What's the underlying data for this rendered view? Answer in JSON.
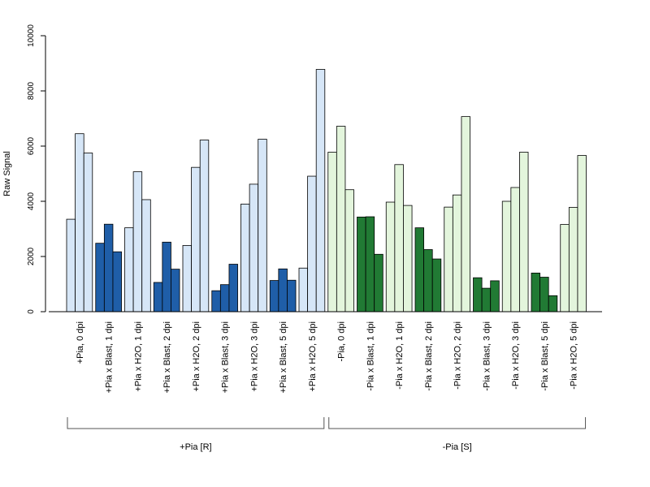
{
  "chart_data": {
    "type": "bar",
    "ylabel": "Raw Signal",
    "ylim": [
      0,
      10000
    ],
    "yticks": [
      0,
      2000,
      4000,
      6000,
      8000,
      10000
    ],
    "categories": [
      "+Pia, 0 dpi",
      "+Pia x Blast, 1 dpi",
      "+Pia x H2O, 1 dpi",
      "+Pia x Blast, 2 dpi",
      "+Pia x H2O, 2 dpi",
      "+Pia x Blast, 3 dpi",
      "+Pia x H2O, 3 dpi",
      "+Pia x Blast, 5 dpi",
      "+Pia x H2O, 5 dpi",
      "-Pia, 0 dpi",
      "-Pia x Blast, 1 dpi",
      "-Pia x H2O, 1 dpi",
      "-Pia x Blast, 2 dpi",
      "-Pia x H2O, 2 dpi",
      "-Pia x Blast, 3 dpi",
      "-Pia x H2O, 3 dpi",
      "-Pia x Blast, 5 dpi",
      "-Pia x H2O, 5 dpi"
    ],
    "replicates": [
      [
        3350,
        6450,
        5750
      ],
      [
        2480,
        3170,
        2170
      ],
      [
        3040,
        5070,
        4060
      ],
      [
        1060,
        2520,
        1540
      ],
      [
        2400,
        5230,
        6220
      ],
      [
        760,
        980,
        1720
      ],
      [
        3900,
        4620,
        6250
      ],
      [
        1130,
        1550,
        1140
      ],
      [
        1580,
        4910,
        8780
      ],
      [
        5780,
        6720,
        4420
      ],
      [
        3430,
        3440,
        2080
      ],
      [
        3970,
        5330,
        3850
      ],
      [
        3040,
        2250,
        1910
      ],
      [
        3790,
        4230,
        7070
      ],
      [
        1230,
        850,
        1120
      ],
      [
        4000,
        4500,
        5780
      ],
      [
        1400,
        1250,
        580
      ],
      [
        3160,
        3780,
        5660
      ]
    ],
    "fill_colors": [
      "#d6e6f7",
      "#1f5ea8",
      "#d6e6f7",
      "#1f5ea8",
      "#d6e6f7",
      "#1f5ea8",
      "#d6e6f7",
      "#1f5ea8",
      "#d6e6f7",
      "#e3f5dc",
      "#217a34",
      "#e3f5dc",
      "#217a34",
      "#e3f5dc",
      "#217a34",
      "#e3f5dc",
      "#217a34",
      "#e3f5dc"
    ],
    "groups": [
      {
        "label": "+Pia [R]",
        "from": 0,
        "to": 8
      },
      {
        "label": "-Pia [S]",
        "from": 9,
        "to": 17
      }
    ]
  }
}
